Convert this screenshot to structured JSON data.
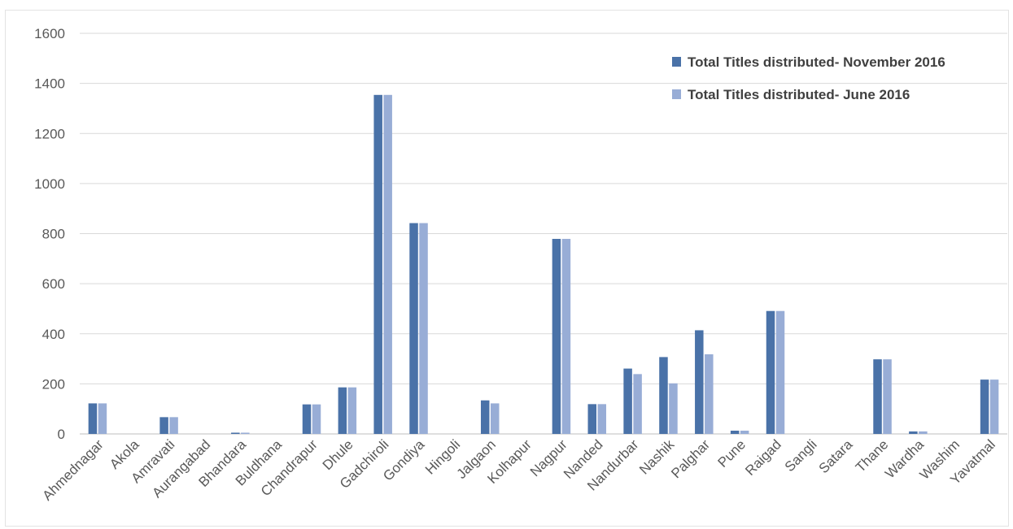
{
  "chart_data": {
    "type": "bar",
    "title": "",
    "xlabel": "",
    "ylabel": "",
    "ylim": [
      0,
      1600
    ],
    "yticks": [
      0,
      200,
      400,
      600,
      800,
      1000,
      1200,
      1400,
      1600
    ],
    "grid": true,
    "legend_position": "top-right",
    "categories": [
      "Ahmednagar",
      "Akola",
      "Amravati",
      "Aurangabad",
      "Bhandara",
      "Buldhana",
      "Chandrapur",
      "Dhule",
      "Gadchiroli",
      "Gondiya",
      "Hingoli",
      "Jalgaon",
      "Kolhapur",
      "Nagpur",
      "Nanded",
      "Nandurbar",
      "Nashik",
      "Palghar",
      "Pune",
      "Raigad",
      "Sangli",
      "Satara",
      "Thane",
      "Wardha",
      "Washim",
      "Yavatmal"
    ],
    "series": [
      {
        "name": "Total Titles distributed- November 2016",
        "color": "#4a72a8",
        "values": [
          122,
          0,
          67,
          0,
          5,
          0,
          118,
          186,
          1354,
          842,
          0,
          134,
          0,
          779,
          119,
          261,
          307,
          414,
          13,
          491,
          0,
          0,
          298,
          10,
          0,
          217
        ]
      },
      {
        "name": "Total Titles distributed- June 2016",
        "color": "#98add6",
        "values": [
          122,
          0,
          67,
          0,
          5,
          0,
          118,
          186,
          1354,
          842,
          0,
          122,
          0,
          779,
          119,
          239,
          202,
          318,
          13,
          491,
          0,
          0,
          298,
          10,
          0,
          217
        ]
      }
    ]
  }
}
